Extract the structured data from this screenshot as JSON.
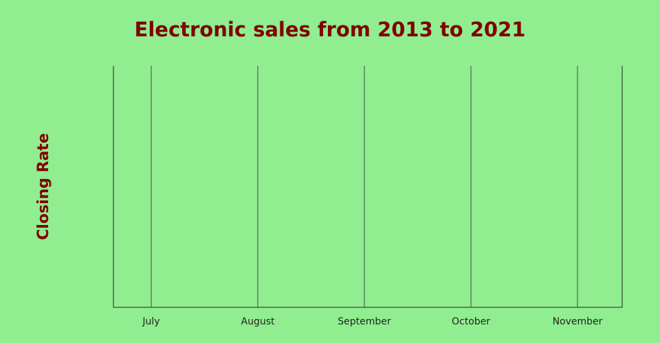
{
  "chart_data": {
    "type": "line",
    "title": "Electronic sales from 2013 to 2021",
    "ylabel": "Closing Rate",
    "categories": [
      "July",
      "August",
      "September",
      "October",
      "November"
    ],
    "series": [],
    "grid": true
  }
}
